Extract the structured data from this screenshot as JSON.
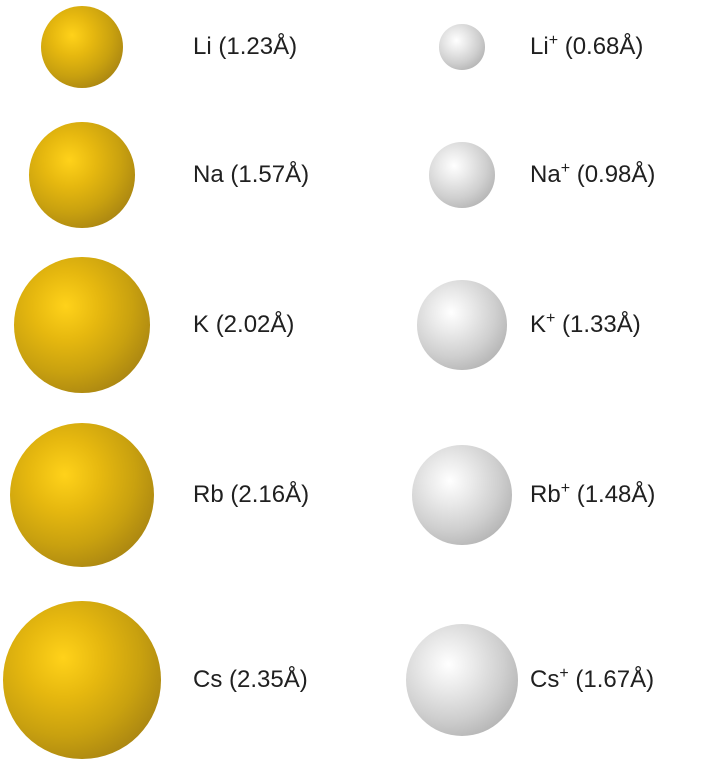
{
  "atoms": [
    {
      "symbol": "Li",
      "radius_label": "(1.23Å)",
      "radius_angstrom": 1.23
    },
    {
      "symbol": "Na",
      "radius_label": "(1.57Å)",
      "radius_angstrom": 1.57
    },
    {
      "symbol": "K",
      "radius_label": "(2.02Å)",
      "radius_angstrom": 2.02
    },
    {
      "symbol": "Rb",
      "radius_label": "(2.16Å)",
      "radius_angstrom": 2.16
    },
    {
      "symbol": "Cs",
      "radius_label": "(2.35Å)",
      "radius_angstrom": 2.35
    }
  ],
  "ions": [
    {
      "symbol": "Li",
      "charge": "+",
      "radius_label": "(0.68Å)",
      "radius_angstrom": 0.68
    },
    {
      "symbol": "Na",
      "charge": "+",
      "radius_label": "(0.98Å)",
      "radius_angstrom": 0.98
    },
    {
      "symbol": "K",
      "charge": "+",
      "radius_label": "(1.33Å)",
      "radius_angstrom": 1.33
    },
    {
      "symbol": "Rb",
      "charge": "+",
      "radius_label": "(1.48Å)",
      "radius_angstrom": 1.48
    },
    {
      "symbol": "Cs",
      "charge": "+",
      "radius_label": "(1.67Å)",
      "radius_angstrom": 1.67
    }
  ],
  "colors": {
    "atom_sphere": "#c9a10f",
    "ion_sphere": "#cfcfcf",
    "text": "#202020",
    "background": "#ffffff"
  }
}
